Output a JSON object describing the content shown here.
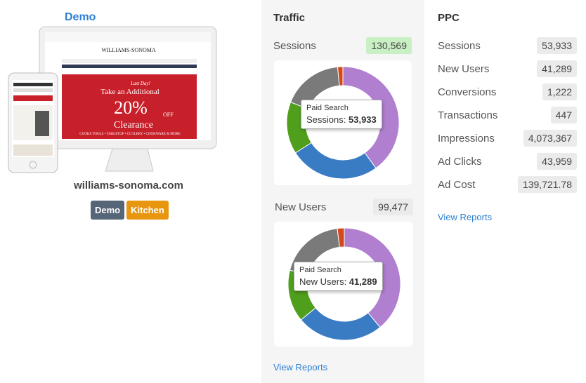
{
  "demo": {
    "title": "Demo",
    "domain": "williams-sonoma.com",
    "tags": [
      "Demo",
      "Kitchen"
    ],
    "screenshot": {
      "brand": "WILLIAMS-SONOMA",
      "kicker": "Last Day!",
      "headline": "Take an Additional",
      "percent": "20%",
      "off": "OFF",
      "word": "Clearance",
      "footer": "COOKS TOOLS • TABLETOP • CUTLERY • COOKWARE & MORE"
    }
  },
  "traffic": {
    "title": "Traffic",
    "link": "View Reports",
    "cards": [
      {
        "label": "Sessions",
        "value": "130,569",
        "donut": {
          "values": [
            40,
            26,
            15,
            17.5,
            1.5
          ],
          "colors": [
            "#b07fcf",
            "#3a7cc4",
            "#4f9e1c",
            "#7a7a7a",
            "#d2491a"
          ]
        },
        "tooltip": {
          "title": "Paid Search",
          "label": "Sessions:",
          "value": "53,933"
        }
      },
      {
        "label": "New Users",
        "value": "99,477",
        "donut": {
          "values": [
            39,
            25,
            15,
            19,
            2
          ],
          "colors": [
            "#b07fcf",
            "#3a7cc4",
            "#4f9e1c",
            "#7a7a7a",
            "#d2491a"
          ]
        },
        "tooltip": {
          "title": "Paid Search",
          "label": "New Users:",
          "value": "41,289"
        }
      }
    ]
  },
  "ppc": {
    "title": "PPC",
    "link": "View Reports",
    "rows": [
      {
        "label": "Sessions",
        "value": "53,933"
      },
      {
        "label": "New Users",
        "value": "41,289"
      },
      {
        "label": "Conversions",
        "value": "1,222"
      },
      {
        "label": "Transactions",
        "value": "447"
      },
      {
        "label": "Impressions",
        "value": "4,073,367"
      },
      {
        "label": "Ad Clicks",
        "value": "43,959"
      },
      {
        "label": "Ad Cost",
        "value": "139,721.78"
      }
    ]
  }
}
